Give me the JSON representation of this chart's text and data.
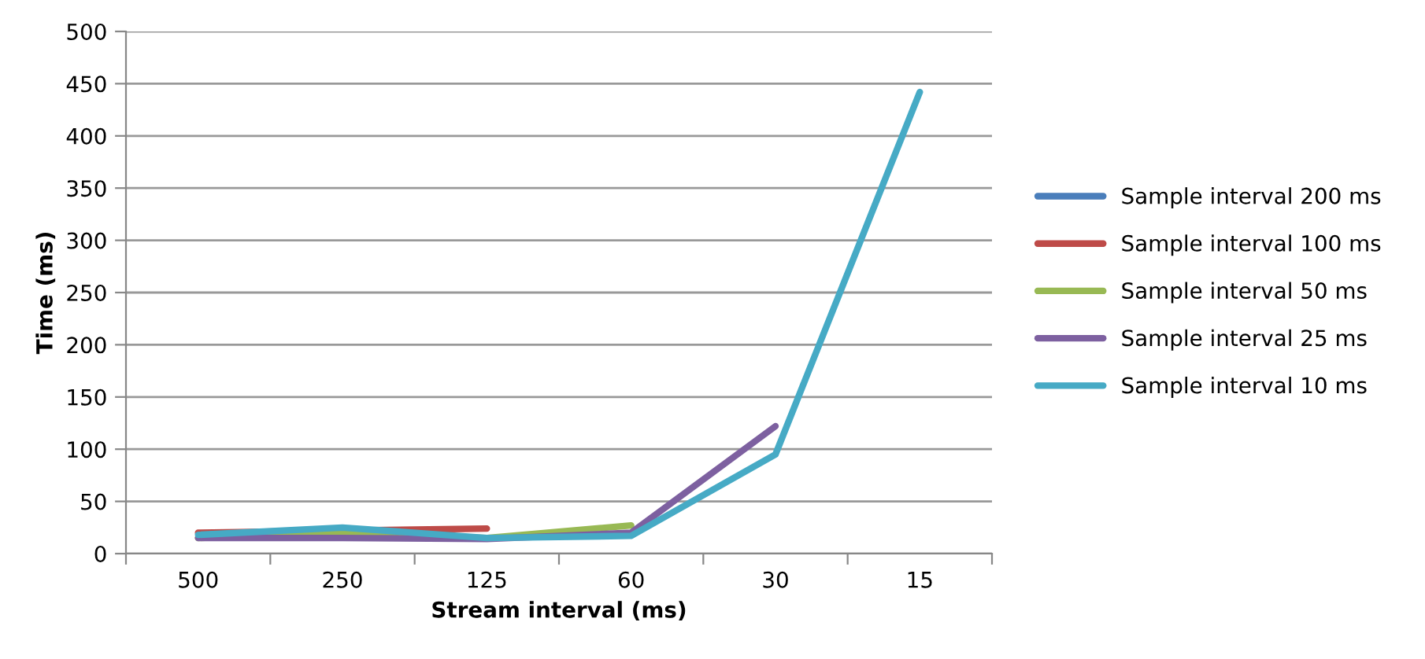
{
  "chart_data": {
    "type": "line",
    "xlabel": "Stream interval (ms)",
    "ylabel": "Time (ms)",
    "categories": [
      "500",
      "250",
      "125",
      "60",
      "30",
      "15"
    ],
    "series": [
      {
        "name": "Sample interval 200 ms",
        "color": "#4a7ebb",
        "values": [
          null,
          null,
          null,
          null,
          null,
          null
        ]
      },
      {
        "name": "Sample interval 100 ms",
        "color": "#be4b48",
        "values": [
          20,
          22,
          24,
          null,
          null,
          null
        ]
      },
      {
        "name": "Sample interval 50 ms",
        "color": "#98b954",
        "values": [
          15,
          20,
          15,
          27,
          null,
          null
        ]
      },
      {
        "name": "Sample interval 25 ms",
        "color": "#7d60a0",
        "values": [
          15,
          15,
          14,
          20,
          122,
          null
        ]
      },
      {
        "name": "Sample interval 10 ms",
        "color": "#46aac5",
        "values": [
          18,
          25,
          15,
          17,
          95,
          442
        ]
      }
    ],
    "ylim": [
      0,
      500
    ],
    "yticks": [
      0,
      50,
      100,
      150,
      200,
      250,
      300,
      350,
      400,
      450,
      500
    ],
    "grid": "y",
    "legend": "right",
    "marker": "none",
    "line_style": "solid"
  }
}
